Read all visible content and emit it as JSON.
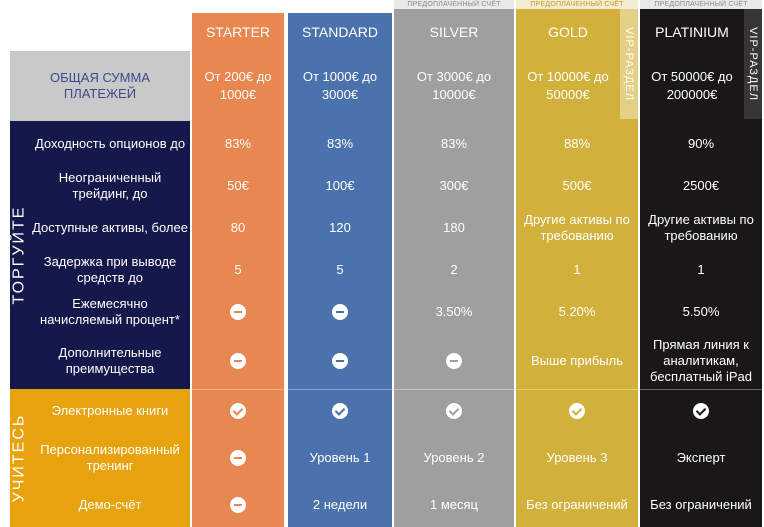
{
  "prepaid_label": "ПРЕДОПЛАЧЕННЫЙ СЧЁТ",
  "vip_label": "VIP-РАЗДЕЛ",
  "total_label": "ОБЩАЯ СУММА ПЛАТЕЖЕЙ",
  "sections": {
    "trade": "ТОРГУЙТЕ",
    "learn": "УЧИТЕСЬ"
  },
  "rows": [
    "Доходность опционов до",
    "Неограниченный трейдинг, до",
    "Доступные активы, более",
    "Задержка при выводе средств до",
    "Ежемесячно начисляемый процент*",
    "Дополнительные преимущества",
    "Электронные книги",
    "Персонализированный тренинг",
    "Демо-счёт"
  ],
  "plans": [
    {
      "name": "STARTER",
      "sum": "От 200€ до 1000€",
      "color": "#e8874f",
      "values": [
        "83%",
        "50€",
        "80",
        "5",
        "",
        "",
        "",
        "",
        ""
      ],
      "icons": [
        "",
        "",
        "",
        "",
        "minus-icon",
        "minus-icon",
        "check-icon",
        "minus-icon",
        "minus-icon"
      ]
    },
    {
      "name": "STANDARD",
      "sum": "От 1000€ до 3000€",
      "color": "#4c72ad",
      "values": [
        "83%",
        "100€",
        "120",
        "5",
        "",
        "",
        "",
        "Уровень 1",
        "2 недели"
      ],
      "icons": [
        "",
        "",
        "",
        "",
        "minus-icon",
        "minus-icon",
        "check-icon",
        "",
        ""
      ]
    },
    {
      "name": "SILVER",
      "sum": "От 3000€ до 10000€",
      "color": "#9f9f9f",
      "values": [
        "83%",
        "300€",
        "180",
        "2",
        "3.50%",
        "",
        "",
        "Уровень 2",
        "1 месяц"
      ],
      "icons": [
        "",
        "",
        "",
        "",
        "",
        "minus-icon",
        "check-icon",
        "",
        ""
      ]
    },
    {
      "name": "GOLD",
      "sum": "От 10000€ до 50000€",
      "color": "#d1b03b",
      "values": [
        "88%",
        "500€",
        "Другие активы по требованию",
        "1",
        "5.20%",
        "Выше прибыль",
        "",
        "Уровень 3",
        "Без ограничений"
      ],
      "icons": [
        "",
        "",
        "",
        "",
        "",
        "",
        "check-icon",
        "",
        ""
      ]
    },
    {
      "name": "PLATINIUM",
      "sum": "От 50000€ до 200000€",
      "color": "#1a1717",
      "values": [
        "90%",
        "2500€",
        "Другие активы по требованию",
        "1",
        "5.50%",
        "Прямая линия к аналитикам, бесплатный iPad",
        "",
        "Эксперт",
        "Без ограничений"
      ],
      "icons": [
        "",
        "",
        "",
        "",
        "",
        "",
        "check-icon",
        "",
        ""
      ]
    }
  ],
  "colors": {
    "navy": "#15184a",
    "amber": "#e8a20e",
    "label_gray": "#c9c9c9",
    "gold_vip_strip": "#e3cf86",
    "platinum_vip_strip": "#3a3535"
  }
}
